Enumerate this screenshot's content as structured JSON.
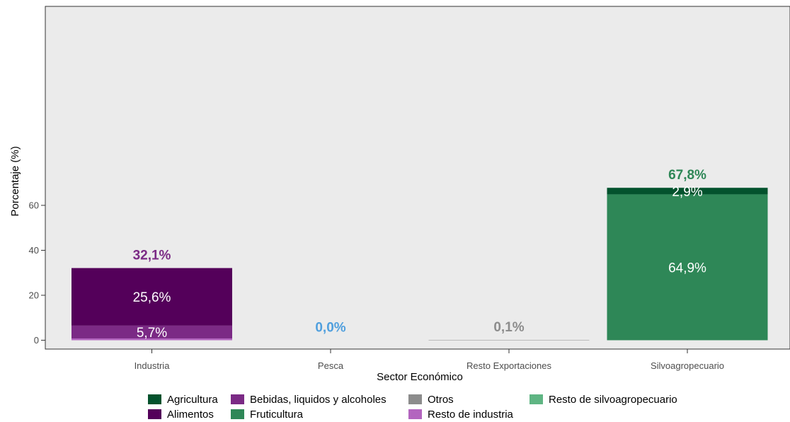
{
  "chart_data": {
    "type": "bar",
    "stacked": true,
    "xlabel": "Sector Económico",
    "ylabel": "Porcentaje (%)",
    "ylim": [
      0,
      72
    ],
    "yticks": [
      0,
      20,
      40,
      60
    ],
    "categories": [
      "Industria",
      "Pesca",
      "Resto Exportaciones",
      "Silvoagropecuario"
    ],
    "series": [
      {
        "name": "Resto de industria",
        "color": "#b365bf",
        "values": [
          0.8,
          0,
          0,
          0
        ],
        "label": ""
      },
      {
        "name": "Bebidas, liquidos y alcoholes",
        "color": "#7b2a85",
        "values": [
          5.7,
          0,
          0,
          0
        ],
        "label": "5,7%"
      },
      {
        "name": "Alimentos",
        "color": "#54005a",
        "values": [
          25.6,
          0,
          0,
          0
        ],
        "label": "25,6%"
      },
      {
        "name": "Pesca",
        "color": "#4f9fde",
        "values": [
          0,
          0.0,
          0,
          0
        ],
        "label": ""
      },
      {
        "name": "Otros",
        "color": "#8c8c8c",
        "values": [
          0,
          0,
          0.1,
          0
        ],
        "label": ""
      },
      {
        "name": "Resto de silvoagropecuario",
        "color": "#5fb583",
        "values": [
          0,
          0,
          0,
          0
        ],
        "label": ""
      },
      {
        "name": "Fruticultura",
        "color": "#2e8757",
        "values": [
          0,
          0,
          0,
          64.9
        ],
        "label": "64,9%"
      },
      {
        "name": "Agricultura",
        "color": "#03522d",
        "values": [
          0,
          0,
          0,
          2.9
        ],
        "label": "2,9%"
      }
    ],
    "totals": [
      {
        "value": 32.1,
        "label": "32,1%",
        "color": "#7b2a85"
      },
      {
        "value": 0.0,
        "label": "0,0%",
        "color": "#4f9fde"
      },
      {
        "value": 0.1,
        "label": "0,1%",
        "color": "#8c8c8c"
      },
      {
        "value": 67.8,
        "label": "67,8%",
        "color": "#2e8757"
      }
    ],
    "grid": false,
    "panel_background": "#ebebeb",
    "legend_position": "bottom",
    "legend": [
      {
        "label": "Agricultura",
        "color": "#03522d"
      },
      {
        "label": "Bebidas, liquidos y alcoholes",
        "color": "#7b2a85"
      },
      {
        "label": "Otros",
        "color": "#8c8c8c"
      },
      {
        "label": "Resto de silvoagropecuario",
        "color": "#5fb583"
      },
      {
        "label": "Alimentos",
        "color": "#54005a"
      },
      {
        "label": "Fruticultura",
        "color": "#2e8757"
      },
      {
        "label": "Resto de industria",
        "color": "#b365bf"
      }
    ]
  }
}
